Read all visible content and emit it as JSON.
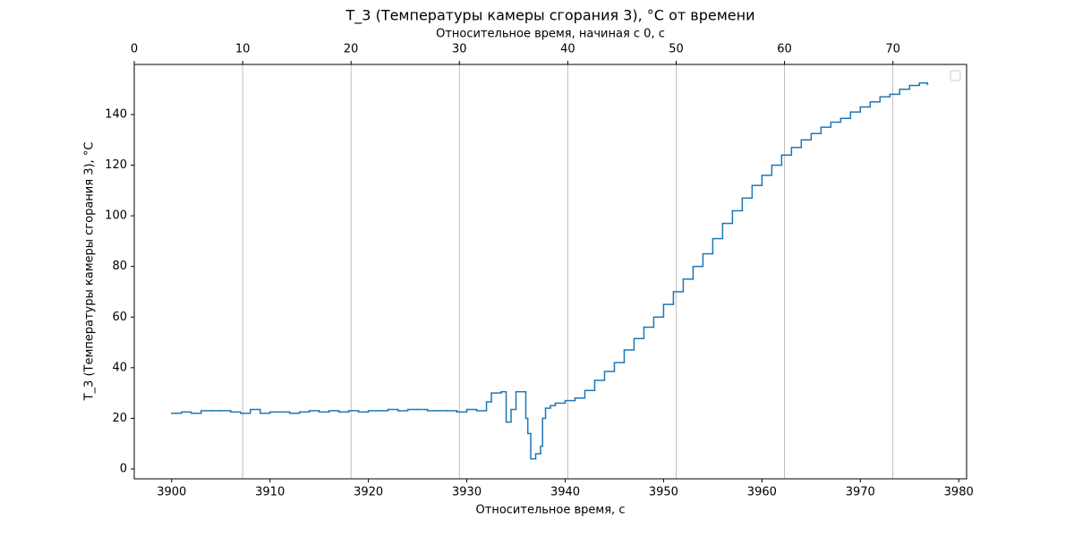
{
  "chart_data": {
    "type": "line",
    "drawstyle": "steps-post",
    "title": "T_3 (Температуры камеры сгорания 3), °C от времени",
    "xlabel": "Относительное время, с",
    "x2label": "Относительное время, начиная с 0, с",
    "ylabel": "T_3 (Температуры камеры сгорания 3), °C",
    "xlim": [
      3896.2,
      3980.8
    ],
    "xticks": [
      3900,
      3910,
      3920,
      3930,
      3940,
      3950,
      3960,
      3970,
      3980
    ],
    "x2lim": [
      0,
      76.8
    ],
    "x2ticks": [
      0,
      10,
      20,
      30,
      40,
      50,
      60,
      70
    ],
    "ylim": [
      -3.9,
      159.8
    ],
    "yticks": [
      0,
      20,
      40,
      60,
      80,
      100,
      120,
      140
    ],
    "grid": "x2",
    "series": [
      {
        "color": "#1f77b4",
        "x": [
          3900,
          3901,
          3902,
          3903,
          3904,
          3905,
          3906,
          3907,
          3908,
          3909,
          3910,
          3911,
          3912,
          3913,
          3914,
          3915,
          3916,
          3917,
          3918,
          3919,
          3920,
          3921,
          3922,
          3923,
          3924,
          3925,
          3926,
          3927,
          3928,
          3929,
          3930,
          3931,
          3932,
          3932.5,
          3933.5,
          3934,
          3934.5,
          3935,
          3936,
          3936.2,
          3936.5,
          3937,
          3937.5,
          3937.7,
          3938,
          3938.5,
          3939,
          3940,
          3941,
          3942,
          3943,
          3944,
          3945,
          3946,
          3947,
          3948,
          3949,
          3950,
          3951,
          3952,
          3953,
          3954,
          3955,
          3956,
          3957,
          3958,
          3959,
          3960,
          3961,
          3962,
          3963,
          3964,
          3965,
          3966,
          3967,
          3968,
          3969,
          3970,
          3971,
          3972,
          3973,
          3974,
          3975,
          3976,
          3976.8
        ],
        "values": [
          22,
          22.5,
          22,
          23,
          23,
          23,
          22.5,
          22,
          23.5,
          22,
          22.5,
          22.5,
          22,
          22.5,
          23,
          22.5,
          23,
          22.5,
          23,
          22.5,
          23,
          23,
          23.5,
          23,
          23.5,
          23.5,
          23,
          23,
          23,
          22.5,
          23.5,
          23,
          26.5,
          30,
          30.5,
          18.5,
          23.5,
          30.5,
          20,
          14,
          4,
          6,
          9,
          20,
          24,
          25,
          26,
          27,
          28,
          31,
          35,
          38.5,
          42,
          47,
          51.5,
          56,
          60,
          65,
          70,
          75,
          80,
          85,
          91,
          97,
          102,
          107,
          112,
          116,
          120,
          124,
          127,
          130,
          132.5,
          135,
          137,
          138.5,
          141,
          143,
          145,
          147,
          148,
          150,
          151.5,
          152.5,
          152
        ]
      }
    ]
  }
}
